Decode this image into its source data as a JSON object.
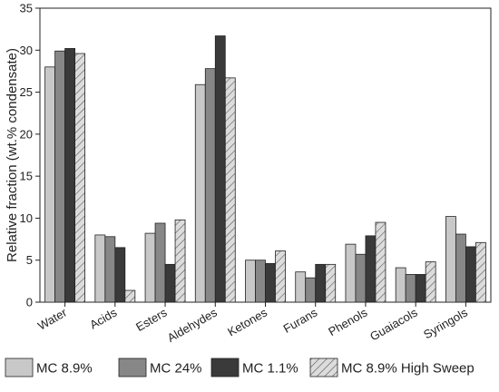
{
  "chart_data": {
    "type": "bar",
    "ylabel": "Relative fraction (wt.% condensate)",
    "xlabel": "",
    "ylim": [
      0,
      35
    ],
    "yticks": [
      0,
      5,
      10,
      15,
      20,
      25,
      30,
      35
    ],
    "categories": [
      "Water",
      "Acids",
      "Esters",
      "Aldehydes",
      "Ketones",
      "Furans",
      "Phenols",
      "Guaiacols",
      "Syringols"
    ],
    "series": [
      {
        "name": "MC 8.9%",
        "color": "#c8c8c8",
        "hatch": false,
        "values": [
          28.0,
          8.0,
          8.2,
          25.9,
          5.0,
          3.6,
          6.9,
          4.1,
          10.2
        ]
      },
      {
        "name": "MC 24%",
        "color": "#878787",
        "hatch": false,
        "values": [
          29.9,
          7.8,
          9.4,
          27.8,
          5.0,
          2.9,
          5.7,
          3.3,
          8.1
        ]
      },
      {
        "name": "MC 1.1%",
        "color": "#3a3a3a",
        "hatch": false,
        "values": [
          30.2,
          6.5,
          4.5,
          31.7,
          4.6,
          4.5,
          7.9,
          3.3,
          6.6
        ]
      },
      {
        "name": "MC 8.9% High Sweep",
        "color": "#d6d6d6",
        "hatch": true,
        "values": [
          29.6,
          1.4,
          9.8,
          26.7,
          6.1,
          4.5,
          9.5,
          4.8,
          7.1
        ]
      }
    ],
    "grid": false,
    "legend_position": "bottom"
  }
}
